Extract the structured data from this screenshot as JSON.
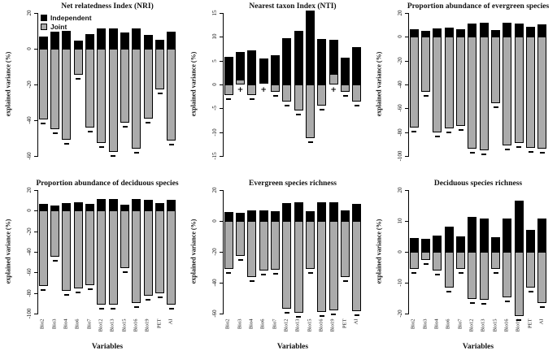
{
  "figure": {
    "xlabel": "Variables",
    "ylabel": "explained variance (%)",
    "legend": {
      "independent_label": "Independent",
      "joint_label": "Joint"
    },
    "colors": {
      "independent": "#000000",
      "joint": "#ababab",
      "axis": "#000000",
      "background": "#ffffff"
    },
    "categories": [
      "Bio2",
      "Bio3",
      "Bio4",
      "Bio6",
      "Bio7",
      "Bio12",
      "Bio13",
      "Bio15",
      "Bio16",
      "Bio19",
      "PET",
      "AI"
    ]
  },
  "chart_data": [
    {
      "type": "bar",
      "title": "Net relatedness Index (NRI)",
      "ylabel": "explained variance (%)",
      "ylim": [
        -60,
        20
      ],
      "yticks": [
        20,
        0,
        -20,
        -40,
        -60
      ],
      "categories": [
        "Bio2",
        "Bio3",
        "Bio4",
        "Bio6",
        "Bio7",
        "Bio12",
        "Bio13",
        "Bio15",
        "Bio16",
        "Bio19",
        "PET",
        "AI"
      ],
      "series": [
        {
          "name": "Independent",
          "values": [
            6.7,
            9.4,
            9.8,
            4.7,
            8.1,
            11.4,
            11.4,
            8.9,
            11.4,
            7.8,
            5.0,
            9.4
          ]
        },
        {
          "name": "Joint",
          "values": [
            -39.5,
            -45.0,
            -51.0,
            -14.5,
            -44.0,
            -52.5,
            -57.5,
            -41.5,
            -56.0,
            -39.0,
            -22.5,
            -51.5
          ]
        }
      ],
      "marks": [
        "-",
        "-",
        "-",
        "-",
        "-",
        "-",
        "-",
        "-",
        "-",
        "-",
        "-",
        "-"
      ],
      "legend": true,
      "x_labels": false,
      "grid": false
    },
    {
      "type": "bar",
      "title": "Nearest taxon Index (NTI)",
      "ylabel": "explained variance (%)",
      "ylim": [
        -15,
        15
      ],
      "yticks": [
        15,
        10,
        5,
        0,
        -5,
        -10,
        -15
      ],
      "categories": [
        "Bio2",
        "Bio3",
        "Bio4",
        "Bio6",
        "Bio7",
        "Bio12",
        "Bio13",
        "Bio15",
        "Bio16",
        "Bio19",
        "PET",
        "AI"
      ],
      "series": [
        {
          "name": "Independent",
          "values": [
            5.8,
            5.7,
            7.2,
            5.3,
            6.1,
            9.7,
            11.3,
            15.5,
            9.5,
            7.1,
            5.6,
            7.8
          ]
        },
        {
          "name": "Joint",
          "values": [
            -2.2,
            1.1,
            -2.3,
            0.1,
            -1.6,
            -3.6,
            -5.4,
            -11.3,
            -4.4,
            2.2,
            -1.6,
            -3.6
          ]
        }
      ],
      "marks": [
        "-",
        "+",
        "-",
        "+",
        "-",
        "-",
        "-",
        "-",
        "-",
        "+",
        "-",
        "-"
      ],
      "legend": false,
      "x_labels": false,
      "grid": false
    },
    {
      "type": "bar",
      "title": "Proportion abundance of evergreen species",
      "ylabel": "explained variance (%)",
      "ylim": [
        -100,
        20
      ],
      "yticks": [
        20,
        0,
        -20,
        -40,
        -60,
        -80,
        -100
      ],
      "categories": [
        "Bio2",
        "Bio3",
        "Bio4",
        "Bio6",
        "Bio7",
        "Bio12",
        "Bio13",
        "Bio15",
        "Bio16",
        "Bio19",
        "PET",
        "AI"
      ],
      "series": [
        {
          "name": "Independent",
          "values": [
            6.4,
            5.0,
            6.9,
            7.8,
            6.4,
            11.4,
            11.6,
            5.5,
            11.6,
            10.9,
            8.3,
            10.4
          ]
        },
        {
          "name": "Joint",
          "values": [
            -76.0,
            -46.0,
            -80.0,
            -77.0,
            -75.0,
            -94.0,
            -95.0,
            -56.0,
            -91.0,
            -89.0,
            -93.0,
            -94.0
          ]
        }
      ],
      "marks": [
        "-",
        "-",
        "-",
        "-",
        "-",
        "-",
        "-",
        "-",
        "-",
        "-",
        "-",
        "-"
      ],
      "legend": false,
      "x_labels": false,
      "grid": false
    },
    {
      "type": "bar",
      "title": "Proportion abundance of deciduous species",
      "ylabel": "explained variance (%)",
      "ylim": [
        -100,
        20
      ],
      "yticks": [
        20,
        0,
        -20,
        -40,
        -60,
        -80,
        -100
      ],
      "categories": [
        "Bio2",
        "Bio3",
        "Bio4",
        "Bio6",
        "Bio7",
        "Bio12",
        "Bio13",
        "Bio15",
        "Bio16",
        "Bio19",
        "PET",
        "AI"
      ],
      "series": [
        {
          "name": "Independent",
          "values": [
            6.2,
            5.0,
            7.1,
            8.1,
            6.7,
            11.2,
            11.7,
            5.5,
            11.7,
            10.5,
            7.6,
            10.2
          ]
        },
        {
          "name": "Joint",
          "values": [
            -73.0,
            -45.0,
            -78.0,
            -75.5,
            -72.0,
            -91.5,
            -91.5,
            -55.5,
            -90.0,
            -82.5,
            -80.5,
            -91.5
          ]
        }
      ],
      "marks": [
        "-",
        "-",
        "-",
        "-",
        "-",
        "-",
        "-",
        "-",
        "-",
        "-",
        "-",
        "-"
      ],
      "legend": false,
      "x_labels": true,
      "grid": false
    },
    {
      "type": "bar",
      "title": "Evergreen species richness",
      "ylabel": "explained variance (%)",
      "ylim": [
        -60,
        20
      ],
      "yticks": [
        20,
        0,
        -20,
        -40,
        -60
      ],
      "categories": [
        "Bio2",
        "Bio3",
        "Bio4",
        "Bio6",
        "Bio7",
        "Bio12",
        "Bio13",
        "Bio15",
        "Bio16",
        "Bio19",
        "PET",
        "AI"
      ],
      "series": [
        {
          "name": "Independent",
          "values": [
            5.8,
            5.3,
            7.0,
            6.7,
            6.1,
            11.6,
            12.2,
            6.4,
            11.9,
            11.9,
            6.6,
            10.8
          ]
        },
        {
          "name": "Joint",
          "values": [
            -31.3,
            -22.5,
            -36.3,
            -32.2,
            -31.7,
            -56.7,
            -59.5,
            -30.9,
            -58.8,
            -57.8,
            -36.4,
            -58.3
          ]
        }
      ],
      "marks": [
        "-",
        "-",
        "-",
        "-",
        "-",
        "-",
        "-",
        "-",
        "-",
        "-",
        "-",
        "-"
      ],
      "legend": false,
      "x_labels": true,
      "grid": false
    },
    {
      "type": "bar",
      "title": "Deciduous species richness",
      "ylabel": "explained variance (%)",
      "ylim": [
        -20,
        20
      ],
      "yticks": [
        20,
        10,
        0,
        -10,
        -20
      ],
      "categories": [
        "Bio2",
        "Bio3",
        "Bio4",
        "Bio6",
        "Bio7",
        "Bio12",
        "Bio13",
        "Bio15",
        "Bio16",
        "Bio19",
        "PET",
        "AI"
      ],
      "series": [
        {
          "name": "Independent",
          "values": [
            4.6,
            4.3,
            5.2,
            8.2,
            4.9,
            11.3,
            10.9,
            4.7,
            10.9,
            16.6,
            7.1,
            10.8
          ]
        },
        {
          "name": "Joint",
          "values": [
            -5.6,
            -2.7,
            -6.0,
            -11.7,
            -5.4,
            -15.2,
            -15.6,
            -5.5,
            -14.8,
            -20.9,
            -11.7,
            -16.6
          ]
        }
      ],
      "marks": [
        "-",
        "-",
        "-",
        "-",
        "-",
        "-",
        "-",
        "-",
        "-",
        "-",
        "-",
        "-"
      ],
      "legend": false,
      "x_labels": true,
      "grid": false
    }
  ]
}
